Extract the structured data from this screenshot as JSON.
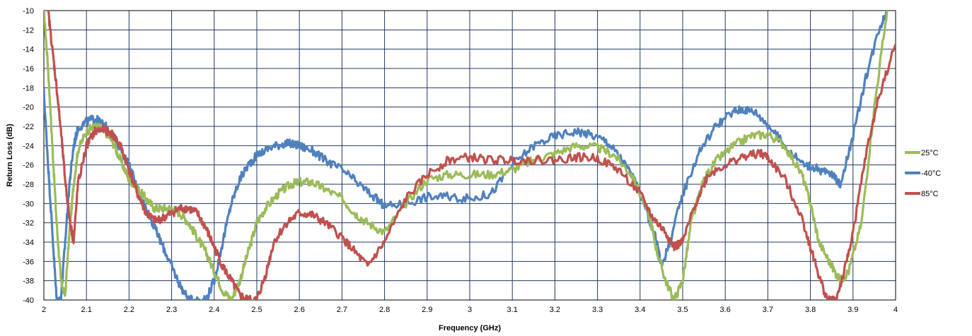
{
  "chart_data": {
    "type": "line",
    "title": "",
    "xlabel": "Frequency (GHz)",
    "ylabel": "Return Loss (dB)",
    "xlim": [
      2,
      4
    ],
    "ylim": [
      -40,
      -10
    ],
    "x_ticks": [
      2,
      2.1,
      2.2,
      2.3,
      2.4,
      2.5,
      2.6,
      2.7,
      2.8,
      2.9,
      3,
      3.1,
      3.2,
      3.3,
      3.4,
      3.5,
      3.6,
      3.7,
      3.8,
      3.9,
      4
    ],
    "x_tick_labels": [
      "2",
      "2.1",
      "2.2",
      "2.3",
      "2.4",
      "2.5",
      "2.6",
      "2.7",
      "2.8",
      "2.9",
      "3",
      "3.1",
      "3.2",
      "3.3",
      "3.4",
      "3.5",
      "3.6",
      "3.7",
      "3.8",
      "3.9",
      "4"
    ],
    "y_ticks": [
      -10,
      -12,
      -14,
      -16,
      -18,
      -20,
      -22,
      -24,
      -26,
      -28,
      -30,
      -32,
      -34,
      -36,
      -38,
      -40
    ],
    "y_tick_labels": [
      "-10",
      "-12",
      "-14",
      "-16",
      "-18",
      "-20",
      "-22",
      "-24",
      "-26",
      "-28",
      "-30",
      "-32",
      "-34",
      "-36",
      "-38",
      "-40"
    ],
    "grid": true,
    "legend_position": "right",
    "series": [
      {
        "name": "25°C",
        "color": "#9bbb59",
        "x": [
          2.0,
          2.01,
          2.02,
          2.03,
          2.04,
          2.05,
          2.06,
          2.07,
          2.08,
          2.1,
          2.12,
          2.14,
          2.16,
          2.18,
          2.2,
          2.22,
          2.24,
          2.26,
          2.28,
          2.3,
          2.32,
          2.34,
          2.36,
          2.38,
          2.4,
          2.42,
          2.44,
          2.46,
          2.48,
          2.5,
          2.52,
          2.55,
          2.58,
          2.6,
          2.63,
          2.66,
          2.7,
          2.73,
          2.76,
          2.8,
          2.85,
          2.9,
          2.95,
          3.0,
          3.05,
          3.1,
          3.15,
          3.2,
          3.25,
          3.3,
          3.34,
          3.38,
          3.42,
          3.44,
          3.46,
          3.48,
          3.5,
          3.52,
          3.55,
          3.58,
          3.62,
          3.66,
          3.7,
          3.74,
          3.78,
          3.8,
          3.82,
          3.85,
          3.87,
          3.89,
          3.92,
          3.95,
          3.98
        ],
        "y": [
          -10,
          -16,
          -24,
          -32,
          -38,
          -39.5,
          -33,
          -28,
          -24.5,
          -22.5,
          -22,
          -22.3,
          -23.5,
          -25.5,
          -27.5,
          -28.5,
          -29.5,
          -30.5,
          -30.5,
          -30.5,
          -31,
          -32,
          -33.5,
          -35,
          -37,
          -39,
          -40,
          -38,
          -35,
          -32,
          -30.5,
          -29,
          -28,
          -27.8,
          -27.8,
          -28.5,
          -29.5,
          -31,
          -32,
          -33,
          -30,
          -27.5,
          -27,
          -27,
          -27,
          -26.5,
          -25.5,
          -24.8,
          -24,
          -24.2,
          -25,
          -27,
          -31,
          -35,
          -38,
          -40,
          -38,
          -32,
          -27.5,
          -25.5,
          -24,
          -23,
          -22.8,
          -24,
          -27,
          -30,
          -34,
          -36.5,
          -38,
          -37,
          -32,
          -20,
          -10
        ]
      },
      {
        "name": "-40°C",
        "color": "#4f81bd",
        "x": [
          2.0,
          2.01,
          2.02,
          2.03,
          2.04,
          2.05,
          2.06,
          2.07,
          2.08,
          2.1,
          2.12,
          2.13,
          2.15,
          2.17,
          2.2,
          2.22,
          2.24,
          2.26,
          2.28,
          2.3,
          2.32,
          2.34,
          2.36,
          2.38,
          2.4,
          2.42,
          2.44,
          2.46,
          2.48,
          2.5,
          2.53,
          2.56,
          2.58,
          2.6,
          2.63,
          2.66,
          2.7,
          2.74,
          2.78,
          2.8,
          2.85,
          2.9,
          2.95,
          3.0,
          3.05,
          3.1,
          3.15,
          3.2,
          3.25,
          3.28,
          3.32,
          3.35,
          3.38,
          3.4,
          3.42,
          3.44,
          3.45,
          3.47,
          3.5,
          3.54,
          3.58,
          3.62,
          3.64,
          3.67,
          3.7,
          3.74,
          3.78,
          3.82,
          3.85,
          3.87,
          3.9,
          3.93,
          3.96,
          3.98
        ],
        "y": [
          -18.5,
          -26,
          -33,
          -40,
          -40,
          -34,
          -28,
          -24,
          -22.2,
          -21.5,
          -21.2,
          -21.5,
          -22.2,
          -23.5,
          -26,
          -28.5,
          -30.5,
          -32.5,
          -34.5,
          -36.5,
          -38.5,
          -40,
          -40,
          -40,
          -38,
          -34,
          -30,
          -27.5,
          -26,
          -25,
          -24.2,
          -23.8,
          -23.8,
          -24,
          -24.5,
          -25.5,
          -26.5,
          -28,
          -29.5,
          -30.3,
          -30,
          -29.3,
          -29.3,
          -29.5,
          -29,
          -26,
          -24,
          -23,
          -22.5,
          -22.8,
          -23.5,
          -25,
          -27,
          -29,
          -31.5,
          -34,
          -36.5,
          -34,
          -29,
          -24.5,
          -21.8,
          -20.5,
          -20.2,
          -20.5,
          -21.8,
          -24,
          -25.8,
          -26.5,
          -27,
          -28,
          -23,
          -17,
          -12,
          -10
        ]
      },
      {
        "name": "85°C",
        "color": "#c0504d",
        "x": [
          2.01,
          2.02,
          2.03,
          2.04,
          2.05,
          2.06,
          2.07,
          2.08,
          2.1,
          2.12,
          2.14,
          2.16,
          2.18,
          2.2,
          2.22,
          2.24,
          2.26,
          2.28,
          2.3,
          2.32,
          2.34,
          2.36,
          2.38,
          2.4,
          2.42,
          2.44,
          2.46,
          2.48,
          2.5,
          2.52,
          2.54,
          2.57,
          2.6,
          2.63,
          2.66,
          2.7,
          2.73,
          2.76,
          2.8,
          2.85,
          2.9,
          2.95,
          3.0,
          3.05,
          3.1,
          3.15,
          3.2,
          3.25,
          3.3,
          3.35,
          3.4,
          3.43,
          3.46,
          3.48,
          3.5,
          3.53,
          3.56,
          3.6,
          3.64,
          3.68,
          3.7,
          3.74,
          3.78,
          3.8,
          3.82,
          3.84,
          3.86,
          3.88,
          3.9,
          3.93,
          3.96,
          4.0
        ],
        "y": [
          -10,
          -14,
          -18,
          -22.5,
          -27.5,
          -31.5,
          -34,
          -28,
          -24,
          -22.5,
          -22.3,
          -22.8,
          -24,
          -26.5,
          -29,
          -31,
          -31.8,
          -31.5,
          -31,
          -30.5,
          -30.5,
          -31,
          -32.5,
          -34.5,
          -36.5,
          -38,
          -39.5,
          -40,
          -40,
          -37.5,
          -34,
          -32,
          -31,
          -31.2,
          -32,
          -33.5,
          -35,
          -36.5,
          -34,
          -29.5,
          -27,
          -25.5,
          -25.2,
          -25.5,
          -25.5,
          -25.5,
          -25.5,
          -25.2,
          -25.3,
          -26.5,
          -29,
          -31.5,
          -33,
          -34.5,
          -34,
          -30,
          -27,
          -26,
          -25.2,
          -24.8,
          -25.2,
          -27.5,
          -31.5,
          -34.5,
          -37.5,
          -40,
          -40,
          -37,
          -33,
          -25,
          -19,
          -13.5
        ]
      }
    ]
  }
}
